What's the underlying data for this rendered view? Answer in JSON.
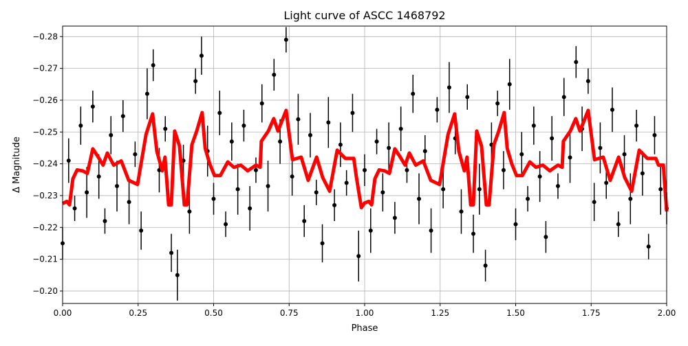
{
  "chart_data": {
    "type": "scatter",
    "title": "Light curve of ASCC 1468792",
    "xlabel": "Phase",
    "ylabel": "Δ Magnitude",
    "xlim": [
      0,
      2
    ],
    "ylim": [
      -0.1961,
      -0.2833
    ],
    "y_inverted": true,
    "grid": true,
    "xticks": [
      "0.00",
      "0.25",
      "0.50",
      "0.75",
      "1.00",
      "1.25",
      "1.50",
      "1.75",
      "2.00"
    ],
    "yticks": [
      "−0.28",
      "−0.27",
      "−0.26",
      "−0.25",
      "−0.24",
      "−0.23",
      "−0.22",
      "−0.21",
      "−0.20"
    ],
    "colors": {
      "points": "#000000",
      "binned": "#ff0000",
      "grid": "#b0b0b0"
    },
    "series": [
      {
        "kind": "errorbar-points",
        "x": [
          0.0,
          0.02,
          0.04,
          0.06,
          0.08,
          0.1,
          0.12,
          0.14,
          0.16,
          0.18,
          0.2,
          0.22,
          0.24,
          0.26,
          0.28,
          0.3,
          0.32,
          0.34,
          0.36,
          0.38,
          0.4,
          0.42,
          0.44,
          0.46,
          0.48,
          0.5,
          0.52,
          0.54,
          0.56,
          0.58,
          0.6,
          0.62,
          0.64,
          0.66,
          0.68,
          0.7,
          0.72,
          0.74,
          0.76,
          0.78,
          0.8,
          0.82,
          0.84,
          0.86,
          0.88,
          0.9,
          0.92,
          0.94,
          0.96,
          0.98,
          1.0,
          1.02,
          1.04,
          1.06,
          1.08,
          1.1,
          1.12,
          1.14,
          1.16,
          1.18,
          1.2,
          1.22,
          1.24,
          1.26,
          1.28,
          1.3,
          1.32,
          1.34,
          1.36,
          1.38,
          1.4,
          1.42,
          1.44,
          1.46,
          1.48,
          1.5,
          1.52,
          1.54,
          1.56,
          1.58,
          1.6,
          1.62,
          1.64,
          1.66,
          1.68,
          1.7,
          1.72,
          1.74,
          1.76,
          1.78,
          1.8,
          1.82,
          1.84,
          1.86,
          1.88,
          1.9,
          1.92,
          1.94,
          1.96,
          1.98,
          2.0
        ],
        "y": [
          -0.215,
          -0.241,
          -0.226,
          -0.252,
          -0.231,
          -0.258,
          -0.236,
          -0.222,
          -0.249,
          -0.233,
          -0.255,
          -0.228,
          -0.243,
          -0.219,
          -0.262,
          -0.271,
          -0.238,
          -0.251,
          -0.212,
          -0.205,
          -0.241,
          -0.225,
          -0.266,
          -0.274,
          -0.244,
          -0.229,
          -0.256,
          -0.221,
          -0.247,
          -0.232,
          -0.252,
          -0.226,
          -0.238,
          -0.259,
          -0.233,
          -0.268,
          -0.247,
          -0.279,
          -0.236,
          -0.254,
          -0.222,
          -0.249,
          -0.231,
          -0.215,
          -0.253,
          -0.227,
          -0.246,
          -0.234,
          -0.256,
          -0.211,
          -0.238,
          -0.219,
          -0.247,
          -0.231,
          -0.245,
          -0.223,
          -0.251,
          -0.238,
          -0.262,
          -0.229,
          -0.244,
          -0.219,
          -0.257,
          -0.232,
          -0.264,
          -0.248,
          -0.225,
          -0.261,
          -0.218,
          -0.232,
          -0.208,
          -0.246,
          -0.259,
          -0.238,
          -0.265,
          -0.221,
          -0.243,
          -0.229,
          -0.252,
          -0.236,
          -0.217,
          -0.248,
          -0.233,
          -0.261,
          -0.242,
          -0.272,
          -0.251,
          -0.266,
          -0.228,
          -0.245,
          -0.234,
          -0.257,
          -0.221,
          -0.243,
          -0.229,
          -0.252,
          -0.237,
          -0.214,
          -0.249,
          -0.232,
          -0.226
        ],
        "yerr": [
          0.005,
          0.007,
          0.004,
          0.006,
          0.008,
          0.005,
          0.007,
          0.004,
          0.006,
          0.008,
          0.005,
          0.007,
          0.004,
          0.006,
          0.008,
          0.005,
          0.007,
          0.004,
          0.006,
          0.008,
          0.005,
          0.007,
          0.004,
          0.006,
          0.008,
          0.005,
          0.007,
          0.004,
          0.006,
          0.008,
          0.005,
          0.007,
          0.004,
          0.006,
          0.008,
          0.005,
          0.007,
          0.004,
          0.006,
          0.008,
          0.005,
          0.007,
          0.004,
          0.006,
          0.008,
          0.005,
          0.007,
          0.004,
          0.006,
          0.008,
          0.005,
          0.007,
          0.004,
          0.006,
          0.008,
          0.005,
          0.007,
          0.004,
          0.006,
          0.008,
          0.005,
          0.007,
          0.004,
          0.006,
          0.008,
          0.005,
          0.007,
          0.004,
          0.006,
          0.008,
          0.005,
          0.007,
          0.004,
          0.006,
          0.008,
          0.005,
          0.007,
          0.004,
          0.006,
          0.008,
          0.005,
          0.007,
          0.004,
          0.006,
          0.008,
          0.005,
          0.007,
          0.004,
          0.006,
          0.008,
          0.005,
          0.007,
          0.004,
          0.006,
          0.008,
          0.005,
          0.007,
          0.004,
          0.006,
          0.008,
          0.005
        ]
      },
      {
        "kind": "binned-line",
        "x": [
          0,
          0.014,
          0.023,
          0.034,
          0.048,
          0.066,
          0.082,
          0.1,
          0.118,
          0.134,
          0.148,
          0.169,
          0.194,
          0.219,
          0.248,
          0.276,
          0.298,
          0.312,
          0.33,
          0.339,
          0.351,
          0.36,
          0.371,
          0.387,
          0.403,
          0.412,
          0.428,
          0.444,
          0.462,
          0.472,
          0.487,
          0.503,
          0.522,
          0.547,
          0.567,
          0.59,
          0.613,
          0.64,
          0.654,
          0.658,
          0.681,
          0.699,
          0.713,
          0.74,
          0.761,
          0.79,
          0.813,
          0.841,
          0.861,
          0.884,
          0.909,
          0.936,
          0.964,
          0.973,
          0.989,
          1,
          1.014,
          1.023,
          1.034,
          1.048,
          1.066,
          1.082,
          1.1,
          1.118,
          1.134,
          1.148,
          1.169,
          1.194,
          1.219,
          1.248,
          1.276,
          1.298,
          1.312,
          1.33,
          1.339,
          1.351,
          1.36,
          1.371,
          1.387,
          1.403,
          1.412,
          1.428,
          1.444,
          1.462,
          1.472,
          1.487,
          1.503,
          1.522,
          1.547,
          1.567,
          1.59,
          1.613,
          1.64,
          1.654,
          1.658,
          1.681,
          1.699,
          1.713,
          1.74,
          1.761,
          1.79,
          1.813,
          1.841,
          1.861,
          1.884,
          1.909,
          1.936,
          1.964,
          1.973,
          1.989,
          2.0
        ],
        "y": [
          -0.2275,
          -0.2282,
          -0.2271,
          -0.2353,
          -0.2381,
          -0.2378,
          -0.237,
          -0.2447,
          -0.2421,
          -0.2396,
          -0.2434,
          -0.2396,
          -0.2409,
          -0.2348,
          -0.2335,
          -0.2492,
          -0.2557,
          -0.2439,
          -0.2378,
          -0.2421,
          -0.2271,
          -0.2271,
          -0.2503,
          -0.2456,
          -0.2271,
          -0.2271,
          -0.246,
          -0.2503,
          -0.2561,
          -0.2449,
          -0.24,
          -0.2363,
          -0.2363,
          -0.2406,
          -0.2389,
          -0.2396,
          -0.2378,
          -0.2396,
          -0.2389,
          -0.2471,
          -0.2503,
          -0.2542,
          -0.2503,
          -0.2568,
          -0.2413,
          -0.2421,
          -0.2348,
          -0.2421,
          -0.2357,
          -0.2314,
          -0.2443,
          -0.2417,
          -0.2417,
          -0.2357,
          -0.2262,
          -0.2277,
          -0.2282,
          -0.2271,
          -0.2353,
          -0.2381,
          -0.2378,
          -0.237,
          -0.2447,
          -0.2421,
          -0.2396,
          -0.2434,
          -0.2396,
          -0.2409,
          -0.2348,
          -0.2335,
          -0.2492,
          -0.2557,
          -0.2439,
          -0.2378,
          -0.2421,
          -0.2271,
          -0.2271,
          -0.2503,
          -0.2456,
          -0.2271,
          -0.2271,
          -0.246,
          -0.2503,
          -0.2561,
          -0.2449,
          -0.24,
          -0.2363,
          -0.2363,
          -0.2406,
          -0.2389,
          -0.2396,
          -0.2378,
          -0.2396,
          -0.2389,
          -0.2471,
          -0.2503,
          -0.2542,
          -0.2503,
          -0.2568,
          -0.2413,
          -0.2421,
          -0.2348,
          -0.2421,
          -0.2357,
          -0.2314,
          -0.2443,
          -0.2417,
          -0.2417,
          -0.2396,
          -0.2396,
          -0.225
        ]
      }
    ]
  }
}
